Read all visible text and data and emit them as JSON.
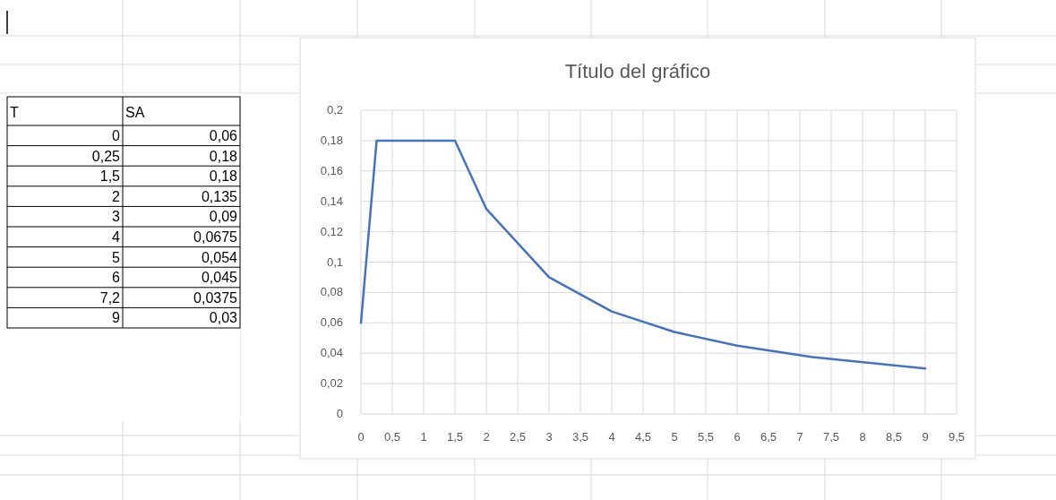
{
  "chart_data": {
    "type": "line",
    "title": "Título del gráfico",
    "grid": true,
    "marker": "none",
    "annotations": [
      "T",
      "SA",
      "0",
      "0,06",
      "0,25",
      "0,18",
      "1,5",
      "0,18",
      "2",
      "0,135",
      "3",
      "0,09",
      "4",
      "0,0675",
      "5",
      "0,054",
      "6",
      "0,045",
      "7,2",
      "0,0375",
      "9",
      "0,03"
    ],
    "x": [
      0,
      0.25,
      1.5,
      2,
      3,
      4,
      5,
      6,
      7.2,
      9
    ],
    "series": [
      {
        "color": "#4472c4",
        "values": [
          0.06,
          0.18,
          0.18,
          0.135,
          0.09,
          0.0675,
          0.054,
          0.045,
          0.0375,
          0.03
        ]
      }
    ],
    "xlim": [
      0,
      9.5
    ],
    "xticks": [
      0,
      {
        "value": 0.5,
        "label": "0,5"
      },
      1,
      {
        "value": 1.5,
        "label": "1,5"
      },
      2,
      {
        "value": 2.5,
        "label": "2,5"
      },
      3,
      {
        "value": 3.5,
        "label": "3,5"
      },
      4,
      {
        "value": 4.5,
        "label": "4,5"
      },
      5,
      {
        "value": 5.5,
        "label": "5,5"
      },
      6,
      {
        "value": 6.5,
        "label": "6,5"
      },
      7,
      {
        "value": 7.5,
        "label": "7,5"
      },
      8,
      {
        "value": 8.5,
        "label": "8,5"
      },
      9,
      {
        "value": 9.5,
        "label": "9,5"
      }
    ],
    "ylim": [
      0,
      0.2
    ],
    "yticks": [
      0,
      {
        "value": 0.02,
        "label": "0,02"
      },
      {
        "value": 0.04,
        "label": "0,04"
      },
      {
        "value": 0.06,
        "label": "0,06"
      },
      {
        "value": 0.08,
        "label": "0,08"
      },
      {
        "value": 0.1,
        "label": "0,1"
      },
      {
        "value": 0.12,
        "label": "0,12"
      },
      {
        "value": 0.14,
        "label": "0,14"
      },
      {
        "value": 0.16,
        "label": "0,16"
      },
      {
        "value": 0.18,
        "label": "0,18"
      },
      {
        "value": 0.2,
        "label": "0,2"
      }
    ]
  }
}
